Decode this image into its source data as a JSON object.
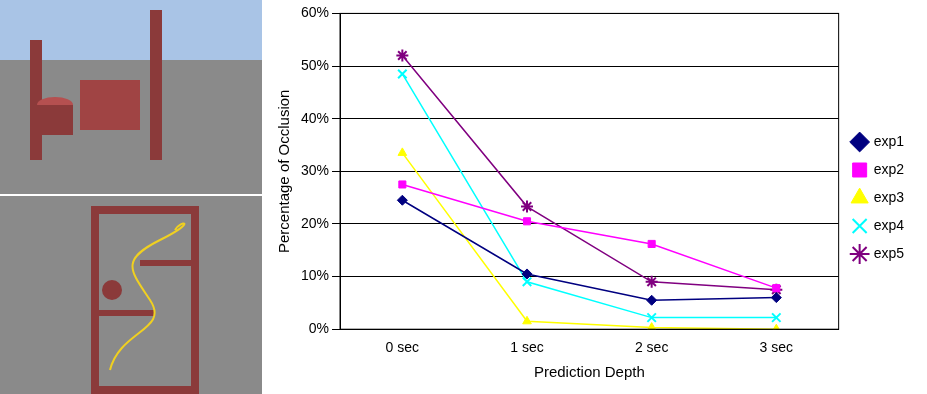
{
  "chart_data": {
    "type": "line",
    "x_label": "Prediction Depth",
    "y_label": "Percentage of Occlusion",
    "categories": [
      "0 sec",
      "1 sec",
      "2 sec",
      "3 sec"
    ],
    "series": [
      {
        "name": "exp1",
        "color": "#000080",
        "marker": "diamond",
        "values": [
          24.5,
          10.5,
          5.5,
          6
        ]
      },
      {
        "name": "exp2",
        "color": "#ff00ff",
        "marker": "square",
        "values": [
          27.5,
          20.5,
          16.2,
          7.8
        ]
      },
      {
        "name": "exp3",
        "color": "#ffff00",
        "marker": "triangle",
        "values": [
          33.5,
          1.5,
          0.3,
          0
        ]
      },
      {
        "name": "exp4",
        "color": "#00ffff",
        "marker": "x",
        "values": [
          48.5,
          9,
          2.2,
          2.2
        ]
      },
      {
        "name": "exp5",
        "color": "#800080",
        "marker": "star",
        "values": [
          52,
          23.3,
          9,
          7.5
        ]
      }
    ],
    "ylim": [
      0,
      60
    ],
    "yticks": [
      {
        "value": 0,
        "label": "0%"
      },
      {
        "value": 10,
        "label": "10%"
      },
      {
        "value": 20,
        "label": "20%"
      },
      {
        "value": 30,
        "label": "30%"
      },
      {
        "value": 40,
        "label": "40%"
      },
      {
        "value": 50,
        "label": "50%"
      },
      {
        "value": 60,
        "label": "60%"
      }
    ],
    "grid": true,
    "legend": "right"
  }
}
